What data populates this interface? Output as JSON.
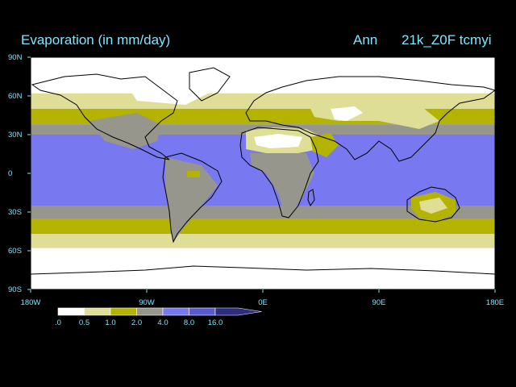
{
  "header": {
    "title": "Evaporation (in mm/day)",
    "season": "Ann",
    "run": "21k_Z0F tcmyi"
  },
  "colors": {
    "text": "#7fe6ff",
    "background": "#000000",
    "land_outline": "#000000",
    "bins": [
      "#ffffff",
      "#dede96",
      "#b4b400",
      "#96968c",
      "#7878f0",
      "#5a5ad2",
      "#2d2d82"
    ]
  },
  "chart_data": {
    "type": "heatmap",
    "title": "Evaporation (in mm/day)",
    "subtitle": "Ann 21k_Z0F tcmyi",
    "projection": "cylindrical equidistant",
    "x": {
      "ticks": [
        "180W",
        "90W",
        "0E",
        "90E",
        "180E"
      ],
      "range": [
        -180,
        180
      ]
    },
    "y": {
      "ticks": [
        "90N",
        "60N",
        "30N",
        "0",
        "30S",
        "60S",
        "90S"
      ],
      "range": [
        -90,
        90
      ]
    },
    "legend": {
      "labels": [
        ".0",
        "0.5",
        "1.0",
        "2.0",
        "4.0",
        "8.0",
        "16.0"
      ],
      "bounds": [
        0,
        0.5,
        1,
        2,
        4,
        8,
        16
      ],
      "placement": "bottom-left"
    },
    "zonal_bands": [
      {
        "lat_from": 90,
        "lat_to": 62,
        "class": "0-0.5"
      },
      {
        "lat_from": 62,
        "lat_to": 50,
        "class": "0.5-1"
      },
      {
        "lat_from": 50,
        "lat_to": 38,
        "class": "1-2"
      },
      {
        "lat_from": 38,
        "lat_to": 30,
        "class": "2-4"
      },
      {
        "lat_from": 30,
        "lat_to": -25,
        "class": "4-8"
      },
      {
        "lat_from": -25,
        "lat_to": -35,
        "class": "2-4"
      },
      {
        "lat_from": -35,
        "lat_to": -47,
        "class": "1-2"
      },
      {
        "lat_from": -47,
        "lat_to": -58,
        "class": "0.5-1"
      },
      {
        "lat_from": -58,
        "lat_to": -90,
        "class": "0-0.5"
      }
    ]
  }
}
